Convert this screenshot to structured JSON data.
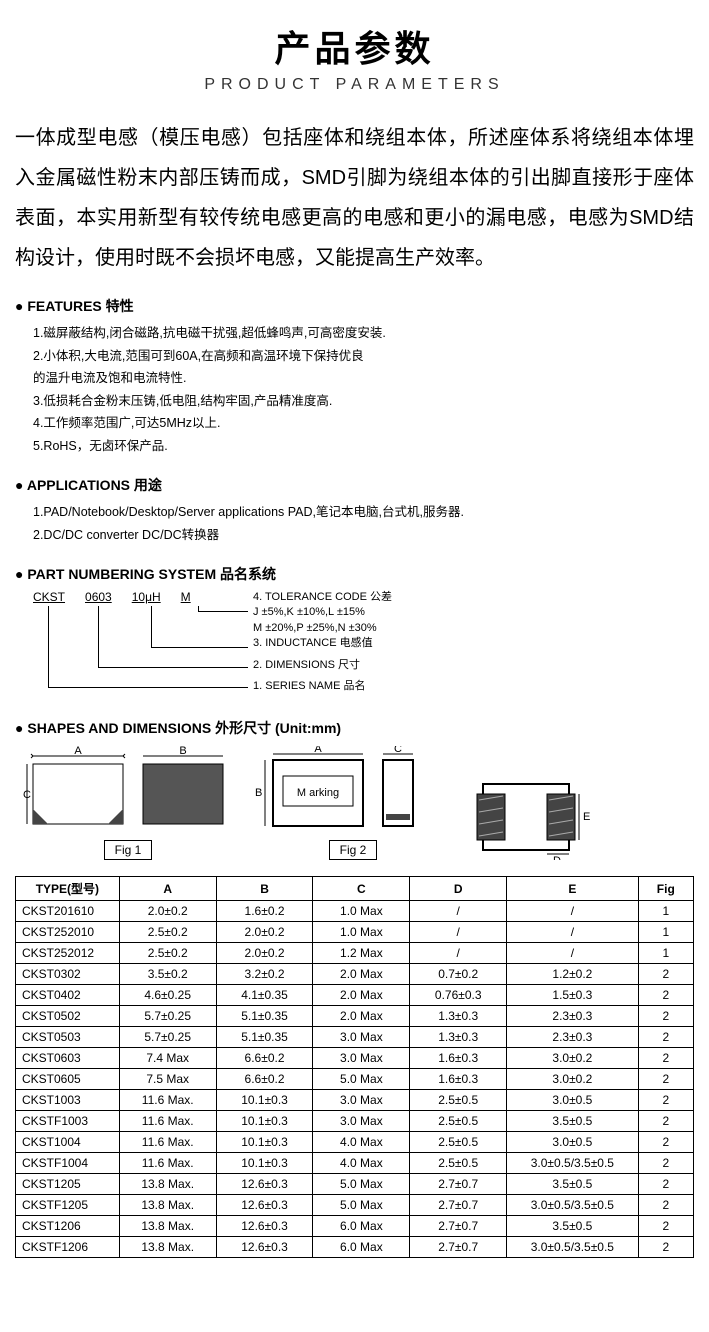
{
  "header": {
    "title_cn": "产品参数",
    "title_en": "PRODUCT PARAMETERS"
  },
  "intro": "一体成型电感（模压电感）包括座体和绕组本体，所述座体系将绕组本体埋入金属磁性粉末内部压铸而成，SMD引脚为绕组本体的引出脚直接形于座体表面，本实用新型有较传统电感更高的电感和更小的漏电感，电感为SMD结构设计，使用时既不会损坏电感，又能提高生产效率。",
  "features": {
    "heading": "FEATURES 特性",
    "items": [
      "1.磁屏蔽结构,闭合磁路,抗电磁干扰强,超低蜂鸣声,可高密度安装.",
      "2.小体积,大电流,范围可到60A,在高频和高温环境下保持优良",
      "   的温升电流及饱和电流特性.",
      "3.低损耗合金粉末压铸,低电阻,结构牢固,产品精准度高.",
      "4.工作频率范围广,可达5MHz以上.",
      "5.RoHS，无卤环保产品."
    ]
  },
  "applications": {
    "heading": "APPLICATIONS  用途",
    "items": [
      "1.PAD/Notebook/Desktop/Server applications    PAD,笔记本电脑,台式机,服务器.",
      "2.DC/DC converter   DC/DC转换器"
    ]
  },
  "part_numbering": {
    "heading": "PART NUMBERING SYSTEM 品名系统",
    "codes": [
      "CKST",
      "0603",
      "10μH",
      "M"
    ],
    "labels": [
      "4. TOLERANCE CODE 公差",
      "J ±5%,K ±10%,L ±15%",
      "M ±20%,P ±25%,N ±30%",
      "3. INDUCTANCE 电感值",
      "2. DIMENSIONS 尺寸",
      "1. SERIES NAME 品名"
    ]
  },
  "shapes": {
    "heading": "SHAPES AND DIMENSIONS 外形尺寸 (Unit:mm)",
    "fig1_label": "Fig 1",
    "fig2_label": "Fig 2",
    "marking_text": "M arking",
    "dims": {
      "A": "A",
      "B": "B",
      "C": "C",
      "D": "D",
      "E": "E"
    }
  },
  "table": {
    "columns": [
      "TYPE(型号)",
      "A",
      "B",
      "C",
      "D",
      "E",
      "Fig"
    ],
    "col_widths": [
      "15%",
      "14%",
      "14%",
      "14%",
      "14%",
      "19%",
      "8%"
    ],
    "rows": [
      [
        "CKST201610",
        "2.0±0.2",
        "1.6±0.2",
        "1.0 Max",
        "/",
        "/",
        "1"
      ],
      [
        "CKST252010",
        "2.5±0.2",
        "2.0±0.2",
        "1.0 Max",
        "/",
        "/",
        "1"
      ],
      [
        "CKST252012",
        "2.5±0.2",
        "2.0±0.2",
        "1.2 Max",
        "/",
        "/",
        "1"
      ],
      [
        "CKST0302",
        "3.5±0.2",
        "3.2±0.2",
        "2.0 Max",
        "0.7±0.2",
        "1.2±0.2",
        "2"
      ],
      [
        "CKST0402",
        "4.6±0.25",
        "4.1±0.35",
        "2.0 Max",
        "0.76±0.3",
        "1.5±0.3",
        "2"
      ],
      [
        "CKST0502",
        "5.7±0.25",
        "5.1±0.35",
        "2.0 Max",
        "1.3±0.3",
        "2.3±0.3",
        "2"
      ],
      [
        "CKST0503",
        "5.7±0.25",
        "5.1±0.35",
        "3.0 Max",
        "1.3±0.3",
        "2.3±0.3",
        "2"
      ],
      [
        "CKST0603",
        "7.4 Max",
        "6.6±0.2",
        "3.0 Max",
        "1.6±0.3",
        "3.0±0.2",
        "2"
      ],
      [
        "CKST0605",
        "7.5 Max",
        "6.6±0.2",
        "5.0 Max",
        "1.6±0.3",
        "3.0±0.2",
        "2"
      ],
      [
        "CKST1003",
        "11.6 Max.",
        "10.1±0.3",
        "3.0 Max",
        "2.5±0.5",
        "3.0±0.5",
        "2"
      ],
      [
        "CKSTF1003",
        "11.6 Max.",
        "10.1±0.3",
        "3.0 Max",
        "2.5±0.5",
        "3.5±0.5",
        "2"
      ],
      [
        "CKST1004",
        "11.6 Max.",
        "10.1±0.3",
        "4.0 Max",
        "2.5±0.5",
        "3.0±0.5",
        "2"
      ],
      [
        "CKSTF1004",
        "11.6 Max.",
        "10.1±0.3",
        "4.0 Max",
        "2.5±0.5",
        "3.0±0.5/3.5±0.5",
        "2"
      ],
      [
        "CKST1205",
        "13.8 Max.",
        "12.6±0.3",
        "5.0 Max",
        "2.7±0.7",
        "3.5±0.5",
        "2"
      ],
      [
        "CKSTF1205",
        "13.8 Max.",
        "12.6±0.3",
        "5.0 Max",
        "2.7±0.7",
        "3.0±0.5/3.5±0.5",
        "2"
      ],
      [
        "CKST1206",
        "13.8 Max.",
        "12.6±0.3",
        "6.0 Max",
        "2.7±0.7",
        "3.5±0.5",
        "2"
      ],
      [
        "CKSTF1206",
        "13.8 Max.",
        "12.6±0.3",
        "6.0 Max",
        "2.7±0.7",
        "3.0±0.5/3.5±0.5",
        "2"
      ]
    ]
  },
  "colors": {
    "text": "#000000",
    "bg": "#ffffff",
    "border": "#000000",
    "hatch": "#444444"
  }
}
